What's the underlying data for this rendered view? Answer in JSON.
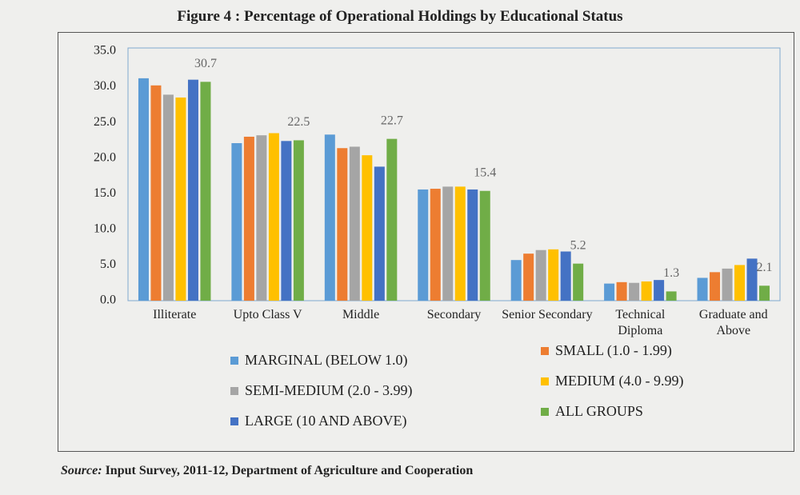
{
  "chart_data": {
    "type": "bar",
    "title": "Figure 4 : Percentage of Operational Holdings by Educational Status",
    "source_label": "Source:",
    "source": "Input Survey, 2011-12, Department of Agriculture and Cooperation",
    "categories": [
      "Illiterate",
      "Upto Class V",
      "Middle",
      "Secondary",
      "Senior Secondary",
      "Technical Diploma",
      "Graduate and Above"
    ],
    "series": [
      {
        "name": "MARGINAL (BELOW 1.0)",
        "color": "#5b9bd5",
        "values": [
          31.2,
          22.1,
          23.3,
          15.6,
          5.7,
          2.4,
          3.2
        ]
      },
      {
        "name": "SMALL (1.0 - 1.99)",
        "color": "#ed7d31",
        "values": [
          30.2,
          23.0,
          21.4,
          15.7,
          6.6,
          2.6,
          4.0
        ]
      },
      {
        "name": "SEMI-MEDIUM (2.0 - 3.99)",
        "color": "#a5a5a5",
        "values": [
          28.9,
          23.2,
          21.6,
          16.0,
          7.1,
          2.5,
          4.5
        ]
      },
      {
        "name": "MEDIUM (4.0 - 9.99)",
        "color": "#ffc000",
        "values": [
          28.5,
          23.5,
          20.4,
          16.0,
          7.2,
          2.7,
          5.0
        ]
      },
      {
        "name": "LARGE (10 AND ABOVE)",
        "color": "#4472c4",
        "values": [
          31.0,
          22.4,
          18.8,
          15.6,
          6.9,
          2.9,
          5.9
        ]
      },
      {
        "name": "ALL GROUPS",
        "color": "#70ad47",
        "values": [
          30.7,
          22.5,
          22.7,
          15.4,
          5.2,
          1.3,
          2.1
        ],
        "data_labels": true
      }
    ],
    "ylim": [
      0,
      35
    ],
    "yticks": [
      {
        "value": 0,
        "label": "0.0"
      },
      {
        "value": 5,
        "label": "5.0"
      },
      {
        "value": 10,
        "label": "10.0"
      },
      {
        "value": 15,
        "label": "15.0"
      },
      {
        "value": 20,
        "label": "20.0"
      },
      {
        "value": 25,
        "label": "25.0"
      },
      {
        "value": 30,
        "label": "30.0"
      },
      {
        "value": 35,
        "label": "35.0"
      }
    ],
    "grid": false
  }
}
